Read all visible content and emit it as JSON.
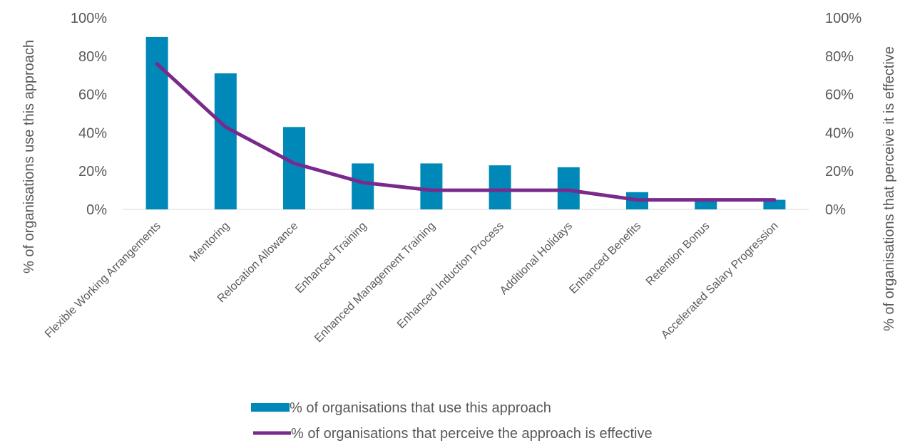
{
  "chart_data": {
    "type": "bar",
    "title": "",
    "xlabel": "",
    "categories": [
      "Flexible Working Arrangements",
      "Mentoring",
      "Relocation Allowance",
      "Enhanced Training",
      "Enhanced Management Training",
      "Enhanced Induction Process",
      "Additional Holidays",
      "Enhanced Benefits",
      "Retention Bonus",
      "Accelerated Salary Progression"
    ],
    "series": [
      {
        "name": "% of organisations that use this approach",
        "type": "bar",
        "axis": "left",
        "values": [
          90,
          71,
          43,
          24,
          24,
          23,
          22,
          9,
          5,
          5
        ]
      },
      {
        "name": "% of organisations that perceive the approach is effective",
        "type": "line",
        "axis": "right",
        "values": [
          76,
          43,
          24,
          14,
          10,
          10,
          10,
          5,
          5,
          5
        ]
      }
    ],
    "ylabel": "% of organisations use this approach",
    "y2label": "% of organisations that perceive it is effective",
    "ylim": [
      0,
      100
    ],
    "y2lim": [
      0,
      100
    ],
    "yticks": [
      "0%",
      "20%",
      "40%",
      "60%",
      "80%",
      "100%"
    ],
    "y2ticks": [
      "0%",
      "20%",
      "40%",
      "60%",
      "80%",
      "100%"
    ],
    "grid": false,
    "legend_position": "bottom",
    "colors": {
      "bar": "#0088B8",
      "line": "#7A2A8C",
      "axis": "#D9D9D9"
    }
  }
}
